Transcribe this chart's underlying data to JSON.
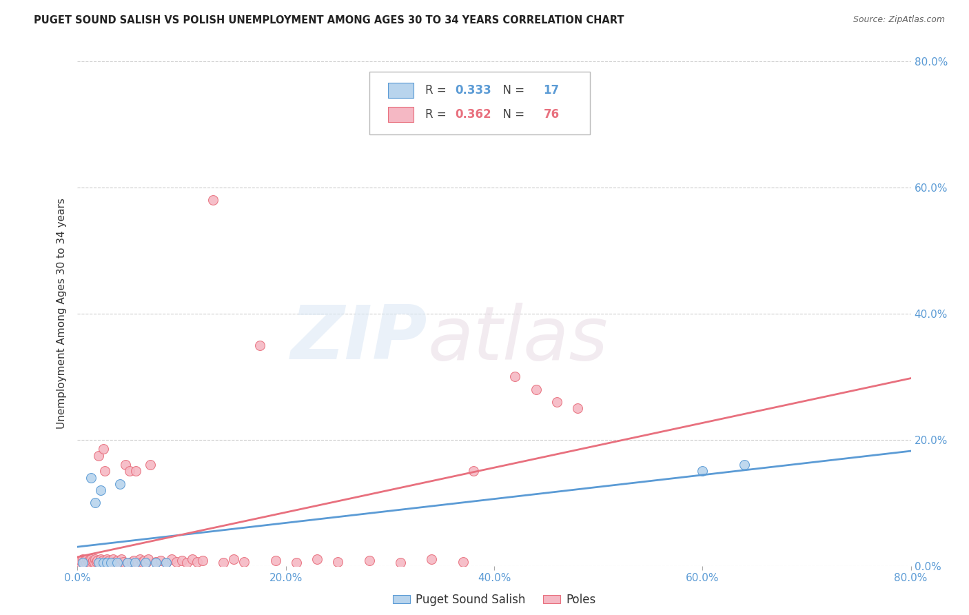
{
  "title": "PUGET SOUND SALISH VS POLISH UNEMPLOYMENT AMONG AGES 30 TO 34 YEARS CORRELATION CHART",
  "source": "Source: ZipAtlas.com",
  "ylabel": "Unemployment Among Ages 30 to 34 years",
  "xlim": [
    0.0,
    0.8
  ],
  "ylim": [
    0.0,
    0.8
  ],
  "xticks": [
    0.0,
    0.2,
    0.4,
    0.6,
    0.8
  ],
  "yticks": [
    0.0,
    0.2,
    0.4,
    0.6,
    0.8
  ],
  "xticklabels": [
    "0.0%",
    "20.0%",
    "40.0%",
    "60.0%",
    "80.0%"
  ],
  "yticklabels_right": [
    "0.0%",
    "20.0%",
    "40.0%",
    "60.0%",
    "80.0%"
  ],
  "salish_color": "#b8d4ed",
  "poles_color": "#f5b8c4",
  "salish_edge_color": "#5b9bd5",
  "poles_edge_color": "#e8707e",
  "salish_line_color": "#5b9bd5",
  "poles_line_color": "#e8707e",
  "salish_R": 0.333,
  "salish_N": 17,
  "poles_R": 0.362,
  "poles_N": 76,
  "background_color": "#ffffff",
  "grid_color": "#cccccc",
  "tick_color": "#5b9bd5",
  "salish_x": [
    0.005,
    0.013,
    0.017,
    0.02,
    0.022,
    0.025,
    0.028,
    0.032,
    0.038,
    0.041,
    0.048,
    0.055,
    0.065,
    0.075,
    0.085,
    0.6,
    0.64
  ],
  "salish_y": [
    0.005,
    0.14,
    0.1,
    0.005,
    0.12,
    0.005,
    0.005,
    0.005,
    0.005,
    0.13,
    0.005,
    0.005,
    0.005,
    0.005,
    0.005,
    0.15,
    0.16
  ],
  "poles_x": [
    0.002,
    0.003,
    0.005,
    0.006,
    0.007,
    0.008,
    0.009,
    0.01,
    0.011,
    0.012,
    0.013,
    0.014,
    0.015,
    0.016,
    0.017,
    0.018,
    0.019,
    0.02,
    0.021,
    0.022,
    0.023,
    0.024,
    0.025,
    0.026,
    0.027,
    0.028,
    0.029,
    0.03,
    0.032,
    0.034,
    0.036,
    0.038,
    0.04,
    0.042,
    0.044,
    0.046,
    0.048,
    0.05,
    0.052,
    0.054,
    0.056,
    0.058,
    0.06,
    0.062,
    0.064,
    0.066,
    0.068,
    0.07,
    0.075,
    0.08,
    0.085,
    0.09,
    0.095,
    0.1,
    0.105,
    0.11,
    0.115,
    0.12,
    0.13,
    0.14,
    0.15,
    0.16,
    0.175,
    0.19,
    0.21,
    0.23,
    0.25,
    0.28,
    0.31,
    0.34,
    0.37,
    0.38,
    0.42,
    0.44,
    0.46,
    0.48
  ],
  "poles_y": [
    0.005,
    0.008,
    0.01,
    0.005,
    0.008,
    0.005,
    0.01,
    0.006,
    0.008,
    0.005,
    0.01,
    0.006,
    0.008,
    0.005,
    0.01,
    0.006,
    0.008,
    0.175,
    0.005,
    0.01,
    0.006,
    0.008,
    0.185,
    0.15,
    0.005,
    0.01,
    0.006,
    0.008,
    0.005,
    0.01,
    0.006,
    0.008,
    0.005,
    0.01,
    0.006,
    0.16,
    0.005,
    0.15,
    0.006,
    0.008,
    0.15,
    0.005,
    0.01,
    0.006,
    0.008,
    0.005,
    0.01,
    0.16,
    0.006,
    0.008,
    0.005,
    0.01,
    0.006,
    0.008,
    0.005,
    0.01,
    0.006,
    0.008,
    0.58,
    0.005,
    0.01,
    0.006,
    0.35,
    0.008,
    0.005,
    0.01,
    0.006,
    0.008,
    0.005,
    0.01,
    0.006,
    0.15,
    0.3,
    0.28,
    0.26,
    0.25
  ]
}
